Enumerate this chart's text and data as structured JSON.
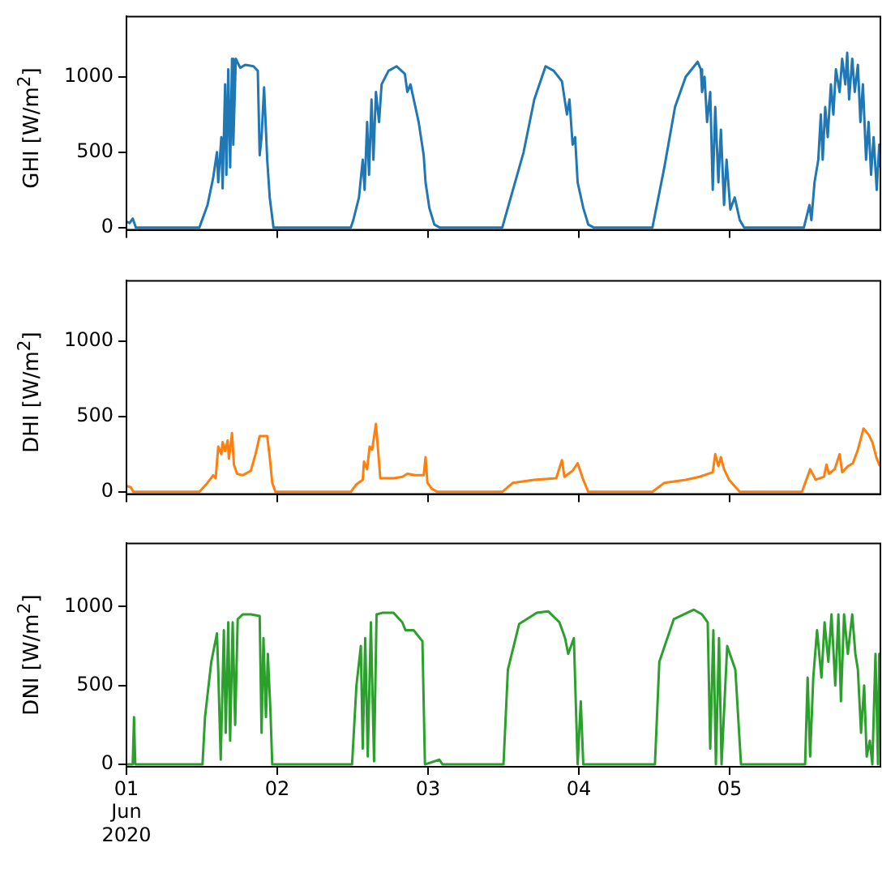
{
  "chart_data": [
    {
      "type": "line",
      "ylabel": "GHI [W/m$^{2}$]",
      "ylim": [
        -15,
        1400
      ],
      "yticks": [
        0,
        500,
        1000
      ],
      "xlim": [
        "2020-06-01T00:00",
        "2020-06-05T23:59"
      ],
      "xticks": [
        {
          "value": "2020-06-01",
          "label": null
        },
        {
          "value": "2020-06-02",
          "label": null
        },
        {
          "value": "2020-06-03",
          "label": null
        },
        {
          "value": "2020-06-04",
          "label": null
        },
        {
          "value": "2020-06-05",
          "label": null
        }
      ],
      "tick_labels": "y",
      "grid": false,
      "series": [
        {
          "color": "#1f77b4",
          "x": [
            "2020-06-01T00:00",
            "2020-06-01T00:30",
            "2020-06-01T01:00",
            "2020-06-01T01:30",
            "2020-06-01T11:36",
            "2020-06-01T12:54",
            "2020-06-01T13:48",
            "2020-06-01T14:24",
            "2020-06-01T14:36",
            "2020-06-01T15:06",
            "2020-06-01T15:18",
            "2020-06-01T15:42",
            "2020-06-01T15:54",
            "2020-06-01T16:12",
            "2020-06-01T16:30",
            "2020-06-01T16:48",
            "2020-06-01T17:00",
            "2020-06-01T17:24",
            "2020-06-01T18:06",
            "2020-06-01T18:54",
            "2020-06-01T20:12",
            "2020-06-01T20:54",
            "2020-06-01T21:12",
            "2020-06-01T21:30",
            "2020-06-01T21:54",
            "2020-06-01T22:24",
            "2020-06-01T22:48",
            "2020-06-01T23:24",
            "2020-06-02T11:42",
            "2020-06-02T12:06",
            "2020-06-02T13:00",
            "2020-06-02T13:36",
            "2020-06-02T13:54",
            "2020-06-02T14:18",
            "2020-06-02T14:36",
            "2020-06-02T15:00",
            "2020-06-02T15:18",
            "2020-06-02T15:42",
            "2020-06-02T16:12",
            "2020-06-02T16:36",
            "2020-06-02T17:42",
            "2020-06-02T19:00",
            "2020-06-02T20:18",
            "2020-06-02T20:42",
            "2020-06-02T21:12",
            "2020-06-02T22:30",
            "2020-06-02T23:18",
            "2020-06-02T23:36",
            "2020-06-03T00:12",
            "2020-06-03T01:00",
            "2020-06-03T01:54",
            "2020-06-03T11:48",
            "2020-06-03T13:30",
            "2020-06-03T15:12",
            "2020-06-03T16:54",
            "2020-06-03T18:42",
            "2020-06-03T20:00",
            "2020-06-03T21:18",
            "2020-06-03T22:06",
            "2020-06-03T22:30",
            "2020-06-03T23:00",
            "2020-06-03T23:24",
            "2020-06-03T23:48",
            "2020-06-04T00:42",
            "2020-06-04T01:30",
            "2020-06-04T02:24",
            "2020-06-04T11:42",
            "2020-06-04T13:36",
            "2020-06-04T15:18",
            "2020-06-04T17:00",
            "2020-06-04T18:54",
            "2020-06-04T19:24",
            "2020-06-04T19:36",
            "2020-06-04T20:00",
            "2020-06-04T20:24",
            "2020-06-04T20:54",
            "2020-06-04T21:18",
            "2020-06-04T21:42",
            "2020-06-04T22:12",
            "2020-06-04T22:36",
            "2020-06-04T23:06",
            "2020-06-04T23:30",
            "2020-06-05T00:06",
            "2020-06-05T00:48",
            "2020-06-05T01:36",
            "2020-06-05T02:18",
            "2020-06-05T11:48",
            "2020-06-05T12:42",
            "2020-06-05T13:00",
            "2020-06-05T13:30",
            "2020-06-05T14:06",
            "2020-06-05T14:30",
            "2020-06-05T14:48",
            "2020-06-05T15:12",
            "2020-06-05T15:36",
            "2020-06-05T16:06",
            "2020-06-05T16:30",
            "2020-06-05T16:54",
            "2020-06-05T17:30",
            "2020-06-05T17:54",
            "2020-06-05T18:24",
            "2020-06-05T18:42",
            "2020-06-05T19:00",
            "2020-06-05T19:30",
            "2020-06-05T19:54",
            "2020-06-05T20:24",
            "2020-06-05T20:48",
            "2020-06-05T21:12",
            "2020-06-05T21:42",
            "2020-06-05T22:06",
            "2020-06-05T22:30",
            "2020-06-05T22:54",
            "2020-06-05T23:24",
            "2020-06-05T23:48",
            "2020-06-05T23:59"
          ],
          "values": [
            40,
            30,
            60,
            0,
            0,
            150,
            330,
            500,
            300,
            600,
            260,
            950,
            350,
            1050,
            400,
            1120,
            550,
            1120,
            1060,
            1080,
            1070,
            1040,
            480,
            600,
            930,
            450,
            200,
            0,
            0,
            50,
            200,
            450,
            250,
            700,
            350,
            850,
            450,
            900,
            700,
            950,
            1040,
            1070,
            1020,
            900,
            950,
            700,
            480,
            300,
            130,
            20,
            0,
            0,
            250,
            500,
            850,
            1070,
            1040,
            970,
            750,
            850,
            550,
            600,
            300,
            130,
            20,
            0,
            0,
            400,
            800,
            1000,
            1100,
            1050,
            900,
            1000,
            700,
            900,
            250,
            800,
            300,
            650,
            150,
            450,
            120,
            200,
            50,
            0,
            0,
            150,
            50,
            300,
            450,
            750,
            450,
            800,
            600,
            950,
            750,
            1050,
            900,
            1120,
            950,
            1160,
            850,
            1120,
            900,
            1080,
            700,
            950,
            450,
            700,
            350,
            600,
            250,
            550,
            400
          ]
        }
      ]
    },
    {
      "type": "line",
      "ylabel": "DHI [W/m$^{2}$]",
      "ylim": [
        -15,
        1400
      ],
      "yticks": [
        0,
        500,
        1000
      ],
      "xlim": [
        "2020-06-01T00:00",
        "2020-06-05T23:59"
      ],
      "xticks": [
        {
          "value": "2020-06-01",
          "label": null
        },
        {
          "value": "2020-06-02",
          "label": null
        },
        {
          "value": "2020-06-03",
          "label": null
        },
        {
          "value": "2020-06-04",
          "label": null
        },
        {
          "value": "2020-06-05",
          "label": null
        }
      ],
      "tick_labels": "y",
      "grid": false,
      "series": [
        {
          "color": "#ff7f0e",
          "x": [
            "2020-06-01T00:00",
            "2020-06-01T00:42",
            "2020-06-01T01:06",
            "2020-06-01T11:36",
            "2020-06-01T12:54",
            "2020-06-01T13:48",
            "2020-06-01T14:12",
            "2020-06-01T14:36",
            "2020-06-01T15:06",
            "2020-06-01T15:18",
            "2020-06-01T15:42",
            "2020-06-01T16:06",
            "2020-06-01T16:18",
            "2020-06-01T16:48",
            "2020-06-01T17:06",
            "2020-06-01T17:36",
            "2020-06-01T18:30",
            "2020-06-01T19:48",
            "2020-06-01T20:36",
            "2020-06-01T21:12",
            "2020-06-01T22:24",
            "2020-06-01T22:48",
            "2020-06-01T23:12",
            "2020-06-01T23:42",
            "2020-06-02T11:42",
            "2020-06-02T12:36",
            "2020-06-02T13:36",
            "2020-06-02T13:48",
            "2020-06-02T14:18",
            "2020-06-02T14:42",
            "2020-06-02T15:06",
            "2020-06-02T15:42",
            "2020-06-02T16:00",
            "2020-06-02T16:24",
            "2020-06-02T18:36",
            "2020-06-02T19:54",
            "2020-06-02T20:42",
            "2020-06-02T22:00",
            "2020-06-02T23:18",
            "2020-06-02T23:36",
            "2020-06-02T23:54",
            "2020-06-03T00:36",
            "2020-06-03T01:30",
            "2020-06-03T11:48",
            "2020-06-03T13:30",
            "2020-06-03T16:54",
            "2020-06-03T20:24",
            "2020-06-03T21:18",
            "2020-06-03T21:42",
            "2020-06-03T23:00",
            "2020-06-03T23:48",
            "2020-06-04T00:42",
            "2020-06-04T01:30",
            "2020-06-04T11:42",
            "2020-06-04T13:36",
            "2020-06-04T17:00",
            "2020-06-04T19:12",
            "2020-06-04T21:18",
            "2020-06-04T21:42",
            "2020-06-04T22:12",
            "2020-06-04T22:36",
            "2020-06-04T23:06",
            "2020-06-04T23:54",
            "2020-06-05T01:36",
            "2020-06-05T11:30",
            "2020-06-05T12:48",
            "2020-06-05T13:42",
            "2020-06-05T15:00",
            "2020-06-05T15:24",
            "2020-06-05T15:48",
            "2020-06-05T16:42",
            "2020-06-05T17:30",
            "2020-06-05T17:54",
            "2020-06-05T18:48",
            "2020-06-05T19:36",
            "2020-06-05T20:24",
            "2020-06-05T21:18",
            "2020-06-05T22:06",
            "2020-06-05T22:42",
            "2020-06-05T23:24",
            "2020-06-05T23:54"
          ],
          "values": [
            40,
            30,
            0,
            0,
            60,
            110,
            90,
            300,
            250,
            330,
            270,
            340,
            220,
            390,
            180,
            120,
            110,
            140,
            260,
            370,
            370,
            230,
            60,
            0,
            0,
            50,
            80,
            200,
            150,
            300,
            280,
            450,
            300,
            90,
            90,
            100,
            120,
            110,
            110,
            230,
            60,
            20,
            0,
            0,
            60,
            80,
            90,
            210,
            100,
            140,
            190,
            80,
            0,
            0,
            60,
            80,
            100,
            130,
            250,
            170,
            230,
            150,
            80,
            0,
            0,
            150,
            80,
            100,
            180,
            120,
            150,
            250,
            130,
            170,
            190,
            280,
            420,
            380,
            330,
            220,
            170
          ]
        }
      ]
    },
    {
      "type": "line",
      "ylabel": "DNI [W/m$^{2}$]",
      "ylim": [
        -15,
        1400
      ],
      "yticks": [
        0,
        500,
        1000
      ],
      "xlim": [
        "2020-06-01T00:00",
        "2020-06-05T23:59"
      ],
      "xticks": [
        {
          "value": "2020-06-01",
          "label": "01\nJun\n2020"
        },
        {
          "value": "2020-06-02",
          "label": "02"
        },
        {
          "value": "2020-06-03",
          "label": "03"
        },
        {
          "value": "2020-06-04",
          "label": "04"
        },
        {
          "value": "2020-06-05",
          "label": "05"
        }
      ],
      "grid": false,
      "series": [
        {
          "color": "#2ca02c",
          "x": [
            "2020-06-01T00:00",
            "2020-06-01T01:00",
            "2020-06-01T01:12",
            "2020-06-01T01:24",
            "2020-06-01T12:06",
            "2020-06-01T12:30",
            "2020-06-01T13:30",
            "2020-06-01T14:24",
            "2020-06-01T14:36",
            "2020-06-01T15:00",
            "2020-06-01T15:30",
            "2020-06-01T15:48",
            "2020-06-01T16:12",
            "2020-06-01T16:30",
            "2020-06-01T16:54",
            "2020-06-01T17:18",
            "2020-06-01T17:42",
            "2020-06-01T18:30",
            "2020-06-01T19:48",
            "2020-06-01T21:12",
            "2020-06-01T21:30",
            "2020-06-01T21:48",
            "2020-06-01T22:12",
            "2020-06-01T22:30",
            "2020-06-01T22:54",
            "2020-06-01T23:12",
            "2020-06-02T11:54",
            "2020-06-02T12:36",
            "2020-06-02T13:18",
            "2020-06-02T13:36",
            "2020-06-02T14:00",
            "2020-06-02T14:24",
            "2020-06-02T14:54",
            "2020-06-02T15:24",
            "2020-06-02T15:48",
            "2020-06-02T16:42",
            "2020-06-02T18:30",
            "2020-06-02T19:54",
            "2020-06-02T20:24",
            "2020-06-02T21:42",
            "2020-06-02T23:06",
            "2020-06-02T23:30",
            "2020-06-03T01:48",
            "2020-06-03T02:18",
            "2020-06-03T12:00",
            "2020-06-03T12:42",
            "2020-06-03T14:30",
            "2020-06-03T17:18",
            "2020-06-03T19:06",
            "2020-06-03T20:54",
            "2020-06-03T21:48",
            "2020-06-03T22:18",
            "2020-06-03T23:12",
            "2020-06-03T23:48",
            "2020-06-04T00:18",
            "2020-06-04T00:42",
            "2020-06-04T12:06",
            "2020-06-04T12:48",
            "2020-06-04T15:06",
            "2020-06-04T18:18",
            "2020-06-04T19:36",
            "2020-06-04T20:30",
            "2020-06-04T20:54",
            "2020-06-04T21:24",
            "2020-06-04T21:48",
            "2020-06-04T22:18",
            "2020-06-04T22:42",
            "2020-06-04T23:36",
            "2020-06-05T00:54",
            "2020-06-05T01:48",
            "2020-06-05T12:00",
            "2020-06-05T12:24",
            "2020-06-05T12:48",
            "2020-06-05T13:18",
            "2020-06-05T13:54",
            "2020-06-05T14:36",
            "2020-06-05T15:06",
            "2020-06-05T15:42",
            "2020-06-05T16:12",
            "2020-06-05T16:48",
            "2020-06-05T17:18",
            "2020-06-05T17:42",
            "2020-06-05T18:12",
            "2020-06-05T18:48",
            "2020-06-05T19:30",
            "2020-06-05T20:00",
            "2020-06-05T20:24",
            "2020-06-05T20:54",
            "2020-06-05T21:24",
            "2020-06-05T21:48",
            "2020-06-05T22:18",
            "2020-06-05T22:42",
            "2020-06-05T23:12",
            "2020-06-05T23:36",
            "2020-06-05T23:48",
            "2020-06-05T23:59"
          ],
          "values": [
            0,
            0,
            300,
            0,
            0,
            300,
            650,
            830,
            600,
            30,
            850,
            200,
            900,
            150,
            900,
            250,
            920,
            950,
            950,
            940,
            200,
            800,
            300,
            700,
            350,
            0,
            0,
            500,
            750,
            100,
            800,
            50,
            900,
            20,
            950,
            960,
            960,
            900,
            850,
            850,
            780,
            0,
            30,
            0,
            0,
            600,
            890,
            960,
            970,
            900,
            800,
            700,
            800,
            0,
            400,
            0,
            0,
            650,
            920,
            980,
            950,
            900,
            100,
            850,
            0,
            800,
            0,
            750,
            600,
            0,
            0,
            550,
            50,
            550,
            850,
            550,
            900,
            650,
            950,
            500,
            950,
            400,
            950,
            700,
            950,
            700,
            600,
            200,
            500,
            50,
            150,
            0,
            700,
            0,
            700,
            700
          ]
        }
      ]
    }
  ]
}
